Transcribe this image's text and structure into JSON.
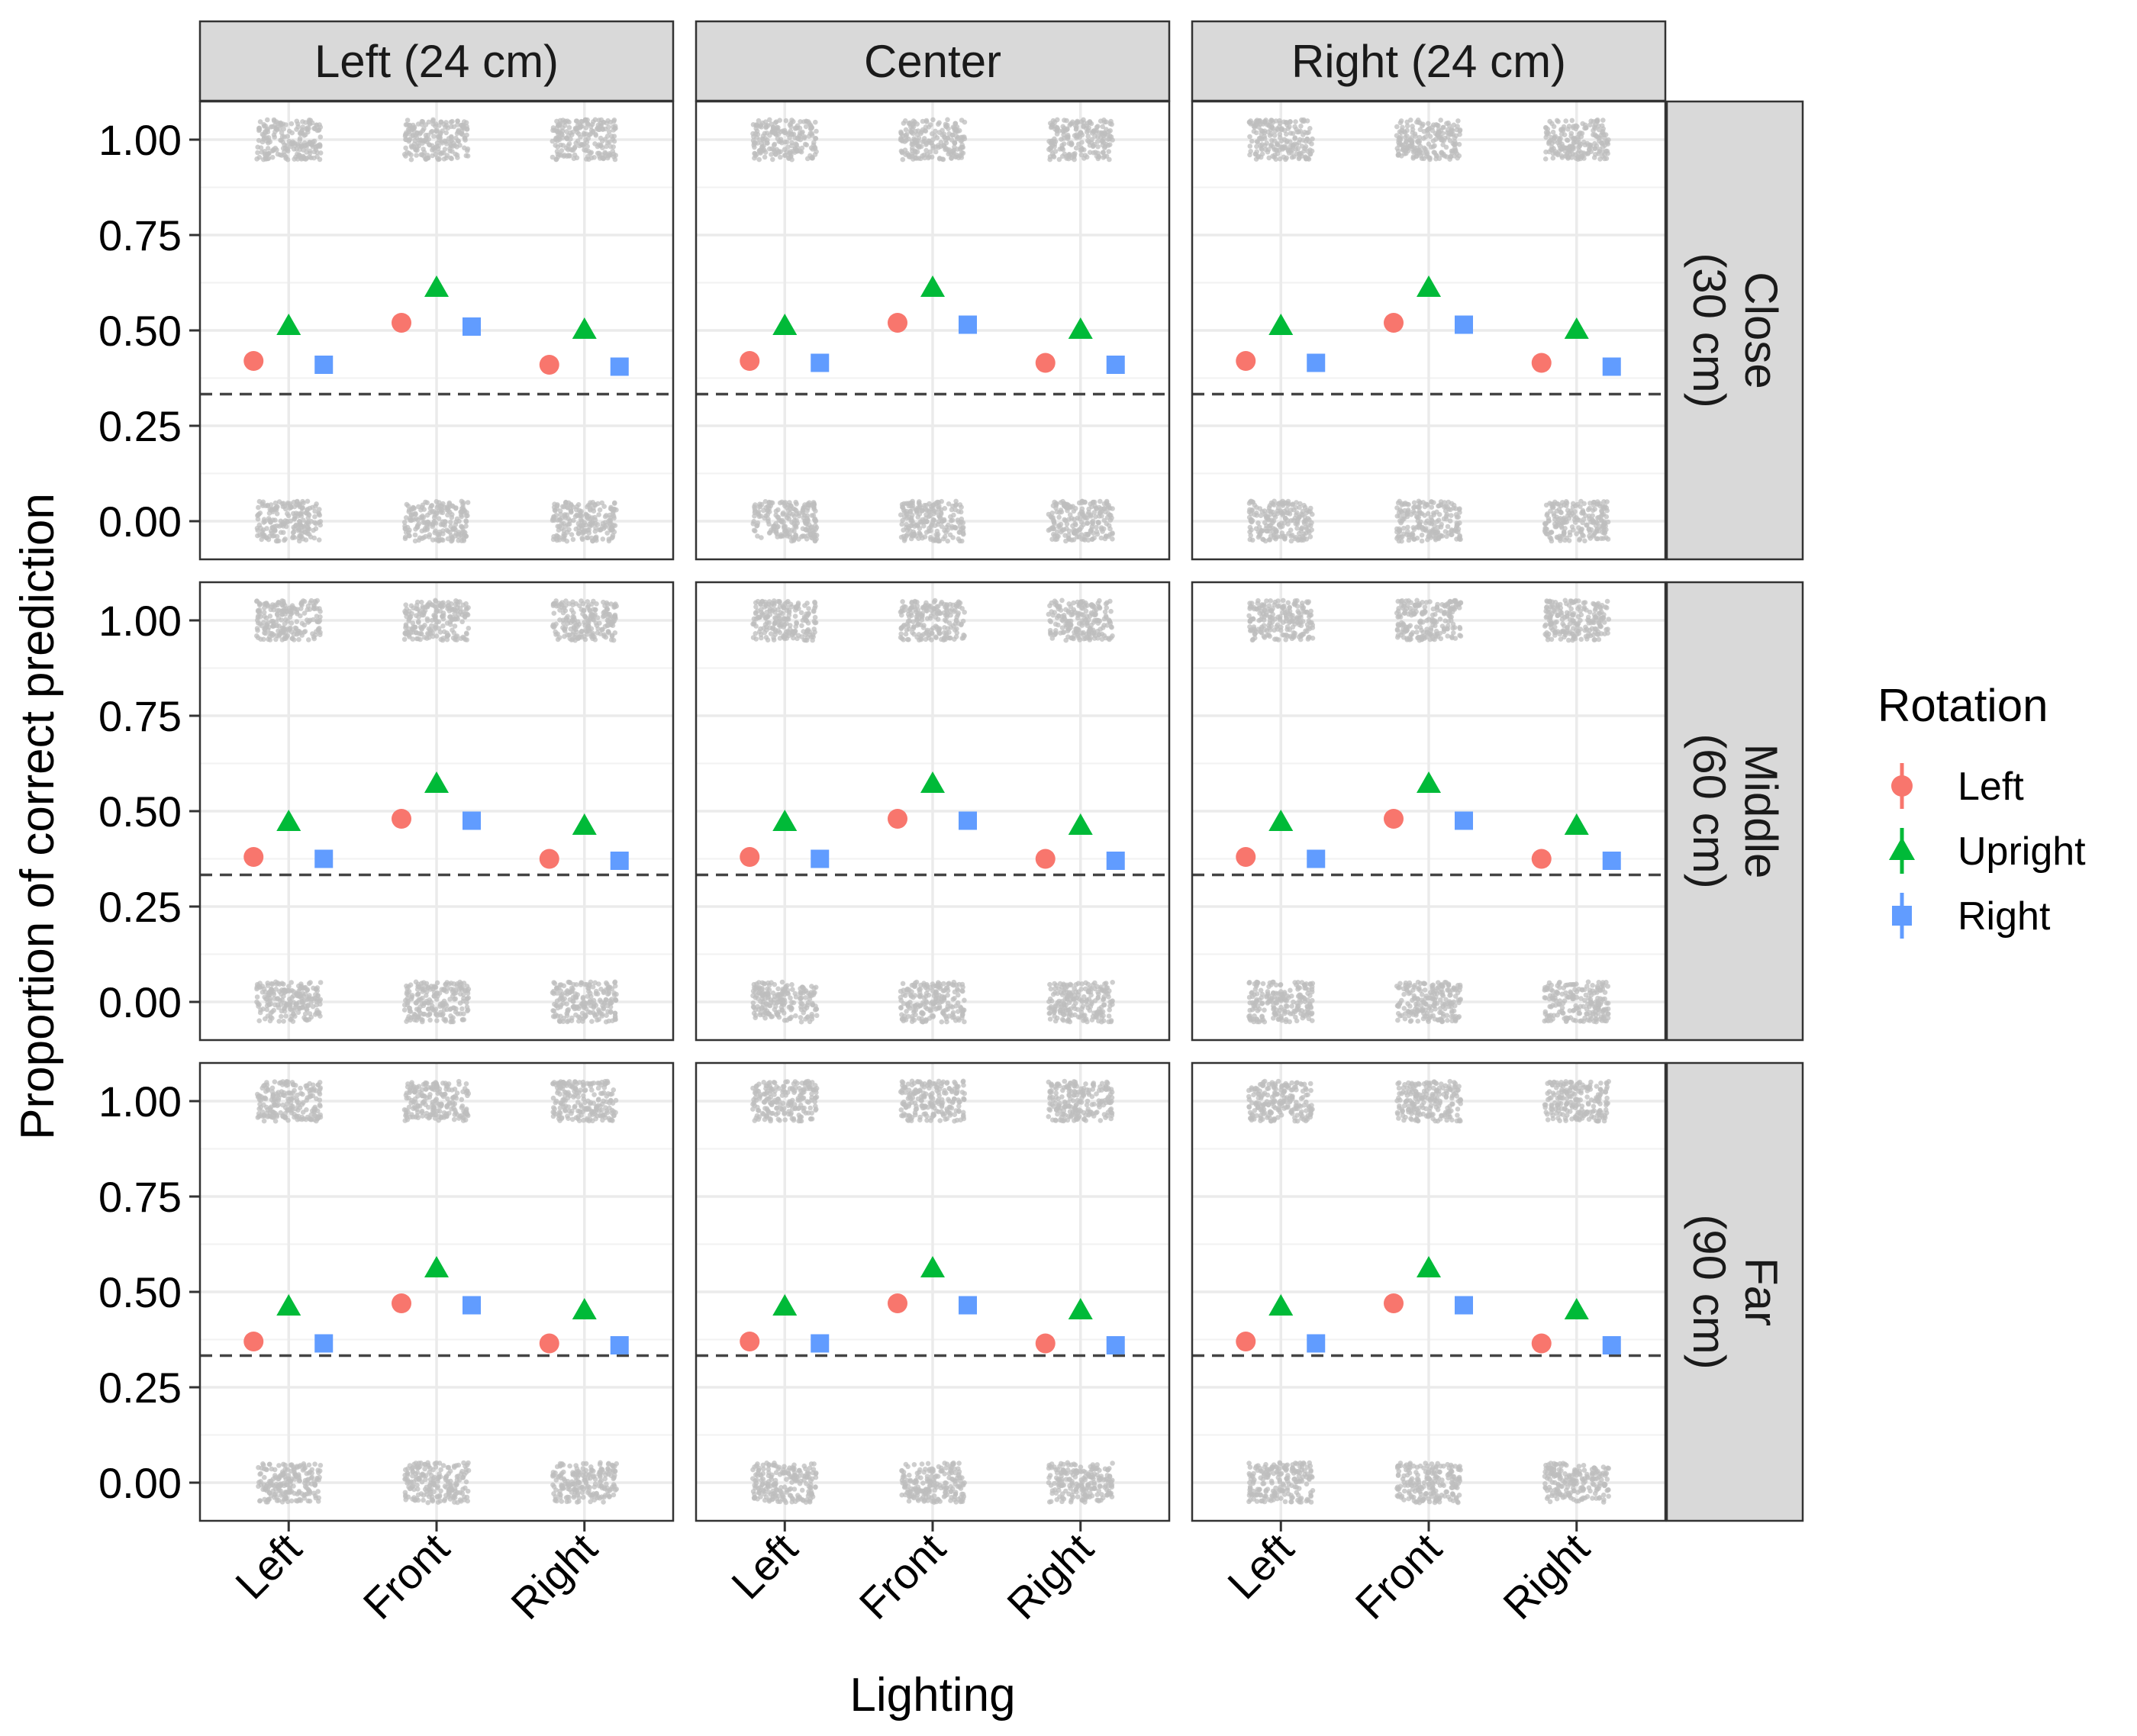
{
  "chart_data": {
    "type": "scatter",
    "facet_columns": [
      "Left (24 cm)",
      "Center",
      "Right (24 cm)"
    ],
    "facet_rows": [
      [
        "Close",
        "(30 cm)"
      ],
      [
        "Middle",
        "(60 cm)"
      ],
      [
        "Far",
        "(90 cm)"
      ]
    ],
    "categories": [
      "Left",
      "Front",
      "Right"
    ],
    "xlabel": "Lighting",
    "ylabel": "Proportion of correct prediction",
    "yticks": [
      "0.00",
      "0.25",
      "0.50",
      "0.75",
      "1.00"
    ],
    "ylim": [
      -0.1,
      1.1
    ],
    "chance_line": 0.333,
    "raw_outcomes": [
      0,
      1
    ],
    "legend": {
      "title": "Rotation",
      "position": "right",
      "entries": [
        {
          "label": "Left",
          "color": "#F8766D",
          "shape": "circle"
        },
        {
          "label": "Upright",
          "color": "#00BA38",
          "shape": "triangle"
        },
        {
          "label": "Right",
          "color": "#619CFF",
          "shape": "square"
        }
      ]
    },
    "series": [
      {
        "name": "Left",
        "values": [
          [
            [
              0.42,
              0.52,
              0.41
            ],
            [
              0.42,
              0.52,
              0.415
            ],
            [
              0.42,
              0.52,
              0.415
            ]
          ],
          [
            [
              0.38,
              0.48,
              0.375
            ],
            [
              0.38,
              0.48,
              0.375
            ],
            [
              0.38,
              0.48,
              0.375
            ]
          ],
          [
            [
              0.37,
              0.47,
              0.365
            ],
            [
              0.37,
              0.47,
              0.365
            ],
            [
              0.37,
              0.47,
              0.365
            ]
          ]
        ]
      },
      {
        "name": "Upright",
        "values": [
          [
            [
              0.51,
              0.61,
              0.5
            ],
            [
              0.51,
              0.61,
              0.5
            ],
            [
              0.51,
              0.61,
              0.5
            ]
          ],
          [
            [
              0.47,
              0.57,
              0.46
            ],
            [
              0.47,
              0.57,
              0.46
            ],
            [
              0.47,
              0.57,
              0.46
            ]
          ],
          [
            [
              0.46,
              0.56,
              0.45
            ],
            [
              0.46,
              0.56,
              0.45
            ],
            [
              0.46,
              0.56,
              0.45
            ]
          ]
        ]
      },
      {
        "name": "Right",
        "values": [
          [
            [
              0.41,
              0.51,
              0.405
            ],
            [
              0.415,
              0.515,
              0.41
            ],
            [
              0.415,
              0.515,
              0.405
            ]
          ],
          [
            [
              0.375,
              0.475,
              0.37
            ],
            [
              0.375,
              0.475,
              0.37
            ],
            [
              0.375,
              0.475,
              0.37
            ]
          ],
          [
            [
              0.365,
              0.465,
              0.36
            ],
            [
              0.365,
              0.465,
              0.36
            ],
            [
              0.365,
              0.465,
              0.36
            ]
          ]
        ]
      }
    ],
    "grid": true
  }
}
